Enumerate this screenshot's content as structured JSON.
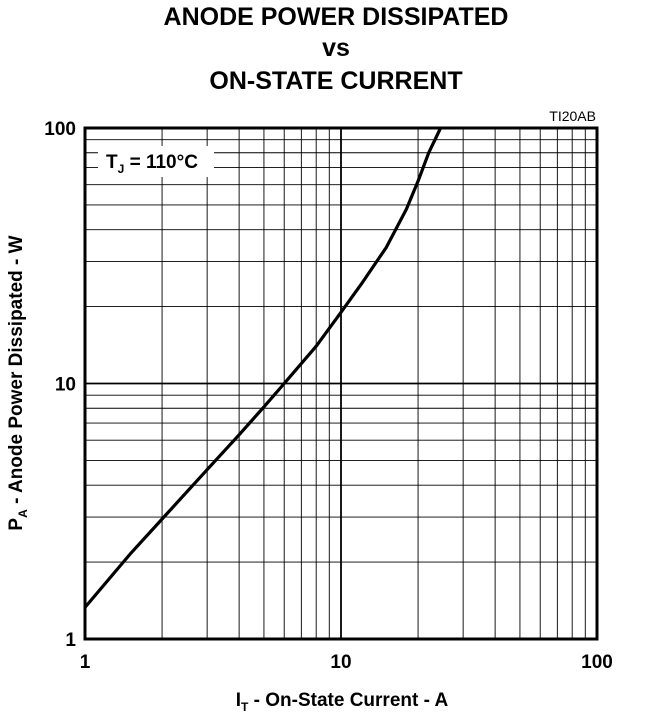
{
  "chart_data": {
    "type": "line",
    "title_lines": [
      "ANODE POWER DISSIPATED",
      "vs",
      "ON-STATE CURRENT"
    ],
    "figure_id": "TI20AB",
    "annotation": {
      "main": "T",
      "sub": "J",
      "rest": " = 110°C"
    },
    "xlabel": {
      "main": "I",
      "sub": "T",
      "rest": " - On-State Current - A"
    },
    "ylabel": {
      "main": "P",
      "sub": "A",
      "rest": " - Anode Power Dissipated - W"
    },
    "x_scale": "log",
    "y_scale": "log",
    "xlim": [
      1,
      100
    ],
    "ylim": [
      1,
      100
    ],
    "x_ticks": [
      1,
      10,
      100
    ],
    "y_ticks": [
      1,
      10,
      100
    ],
    "x_tick_labels": [
      "1",
      "10",
      "100"
    ],
    "y_tick_labels": [
      "1",
      "10",
      "100"
    ],
    "grid": true,
    "series": [
      {
        "x": [
          1,
          1.5,
          2,
          3,
          4,
          5,
          6,
          8,
          10,
          12,
          15,
          18,
          20,
          22,
          24.5
        ],
        "y": [
          1.33,
          2.15,
          2.95,
          4.6,
          6.3,
          8.1,
          10,
          14,
          19,
          24.5,
          34,
          48,
          62,
          80,
          100
        ]
      }
    ]
  }
}
